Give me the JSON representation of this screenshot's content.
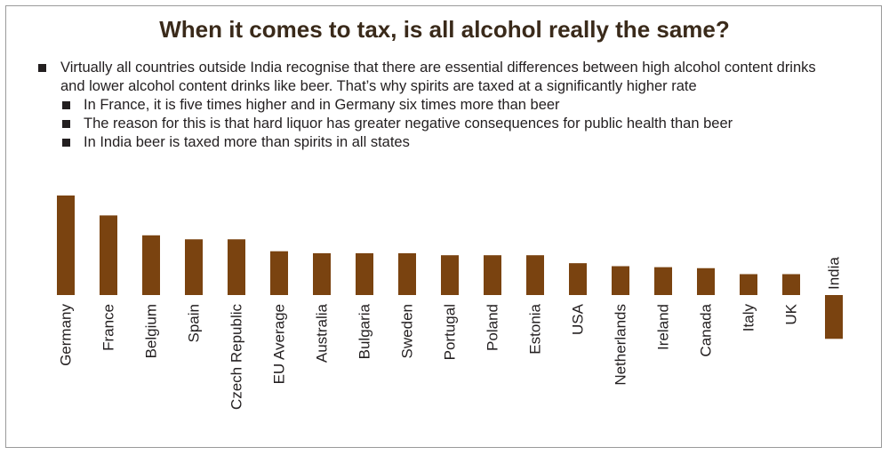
{
  "header": {
    "title": "When it comes to tax, is all alcohol really the same?"
  },
  "bullets": {
    "main": "Virtually all countries outside India recognise that there are essential differences between high alcohol content drinks and lower alcohol content drinks like beer. That’s why spirits are taxed at a significantly higher rate",
    "sub": [
      "In France, it is five times higher and in Germany six times more than beer",
      "The reason for this is that hard liquor has greater negative consequences for public health than beer",
      "In India beer is taxed more than spirits in all states"
    ]
  },
  "colors": {
    "bar": "#7a4310",
    "text": "#231f20"
  },
  "chart_data": {
    "type": "bar",
    "title": "",
    "xlabel": "",
    "ylabel": "",
    "ylim": [
      -2.2,
      5
    ],
    "categories": [
      "Germany",
      "France",
      "Belgium",
      "Spain",
      "Czech Republic",
      "EU Average",
      "Australia",
      "Bulgaria",
      "Sweden",
      "Portugal",
      "Poland",
      "Estonia",
      "USA",
      "Netherlands",
      "Ireland",
      "Canada",
      "Italy",
      "UK",
      "India"
    ],
    "values": [
      5.0,
      4.0,
      3.0,
      2.8,
      2.8,
      2.2,
      2.1,
      2.1,
      2.1,
      2.0,
      2.0,
      2.0,
      1.6,
      1.45,
      1.4,
      1.35,
      1.05,
      1.05,
      -2.2
    ],
    "value_labels": false,
    "axis_visible": false
  }
}
